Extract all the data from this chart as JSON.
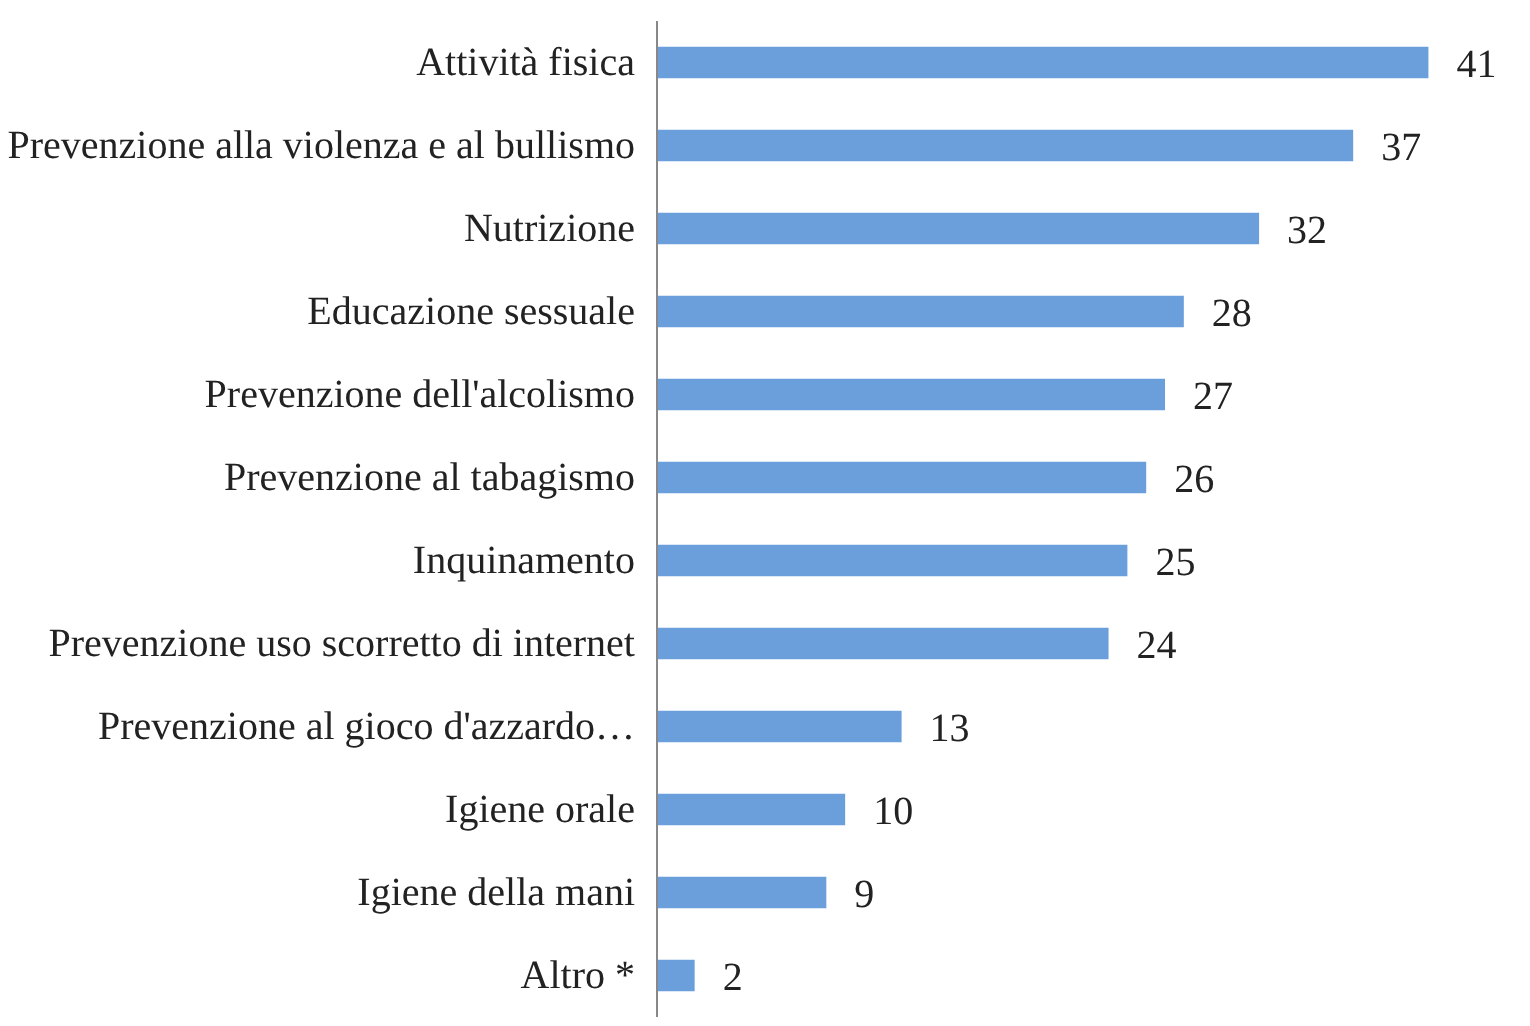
{
  "chart_data": {
    "type": "bar",
    "orientation": "horizontal",
    "categories": [
      "Attività fisica",
      "Prevenzione alla violenza e al bullismo",
      "Nutrizione",
      "Educazione sessuale",
      "Prevenzione dell'alcolismo",
      "Prevenzione al tabagismo",
      "Inquinamento",
      "Prevenzione uso scorretto di internet",
      "Prevenzione al gioco d'azzardo…",
      "Igiene orale",
      "Igiene della mani",
      "Altro *"
    ],
    "values": [
      41,
      37,
      32,
      28,
      27,
      26,
      25,
      24,
      13,
      10,
      9,
      2
    ],
    "color": "#6a9fdb",
    "data_labels": true,
    "grid": false
  }
}
